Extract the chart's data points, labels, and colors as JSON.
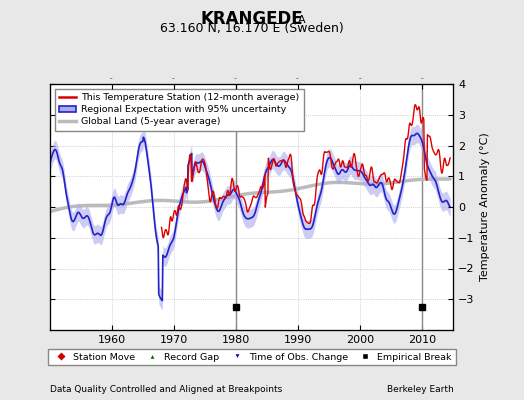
{
  "title": "KRANGEDE",
  "title_subscript": "A",
  "subtitle": "63.160 N, 16.170 E (Sweden)",
  "ylabel": "Temperature Anomaly (°C)",
  "xlabel_left": "Data Quality Controlled and Aligned at Breakpoints",
  "xlabel_right": "Berkeley Earth",
  "ylim": [
    -4,
    4
  ],
  "xlim": [
    1950,
    2015
  ],
  "xticks": [
    1960,
    1970,
    1980,
    1990,
    2000,
    2010
  ],
  "yticks": [
    -3,
    -2,
    -1,
    0,
    1,
    2,
    3,
    4
  ],
  "legend_entries": [
    "This Temperature Station (12-month average)",
    "Regional Expectation with 95% uncertainty",
    "Global Land (5-year average)"
  ],
  "empirical_breaks": [
    1980,
    2010
  ],
  "background_color": "#e8e8e8",
  "plot_bg_color": "#ffffff",
  "grid_color": "#b0b0b0",
  "station_color": "#dd0000",
  "regional_color": "#2222cc",
  "regional_fill_color": "#aaaaee",
  "global_color": "#bbbbbb",
  "seed": 42,
  "figsize": [
    5.24,
    4.0
  ],
  "dpi": 100
}
